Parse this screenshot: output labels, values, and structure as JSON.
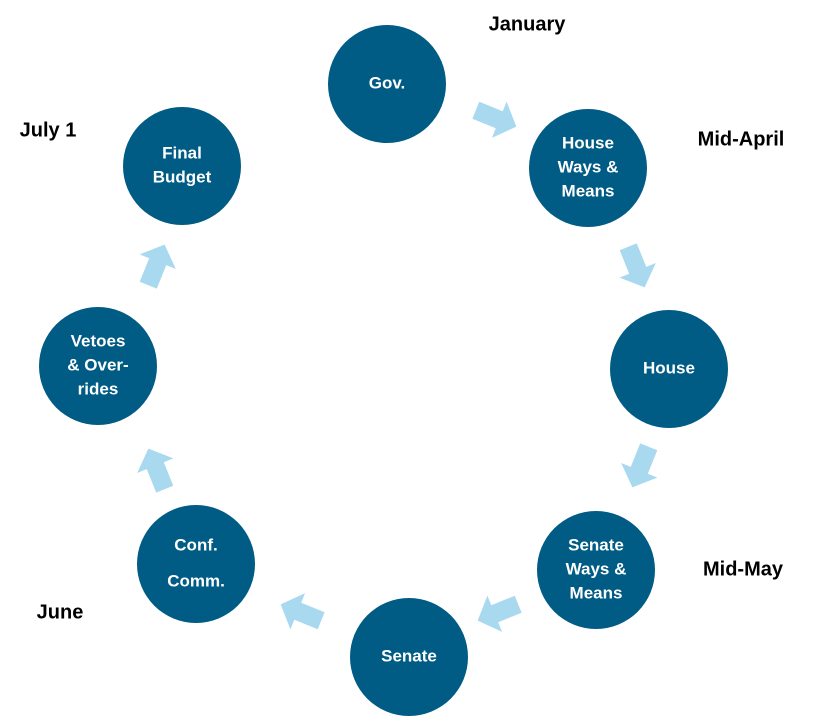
{
  "nodes": [
    {
      "lines": [
        "Gov."
      ]
    },
    {
      "lines": [
        "House",
        "Ways &",
        "Means"
      ]
    },
    {
      "lines": [
        "House"
      ]
    },
    {
      "lines": [
        "Senate",
        "Ways &",
        "Means"
      ]
    },
    {
      "lines": [
        "Senate"
      ]
    },
    {
      "lines": [
        "Conf.",
        "Comm."
      ]
    },
    {
      "lines": [
        "Vetoes",
        "& Over-",
        "rides"
      ]
    },
    {
      "lines": [
        "Final",
        "Budget"
      ]
    }
  ],
  "periods": [
    "January",
    "Mid-April",
    "Mid-May",
    "June",
    "July 1"
  ]
}
